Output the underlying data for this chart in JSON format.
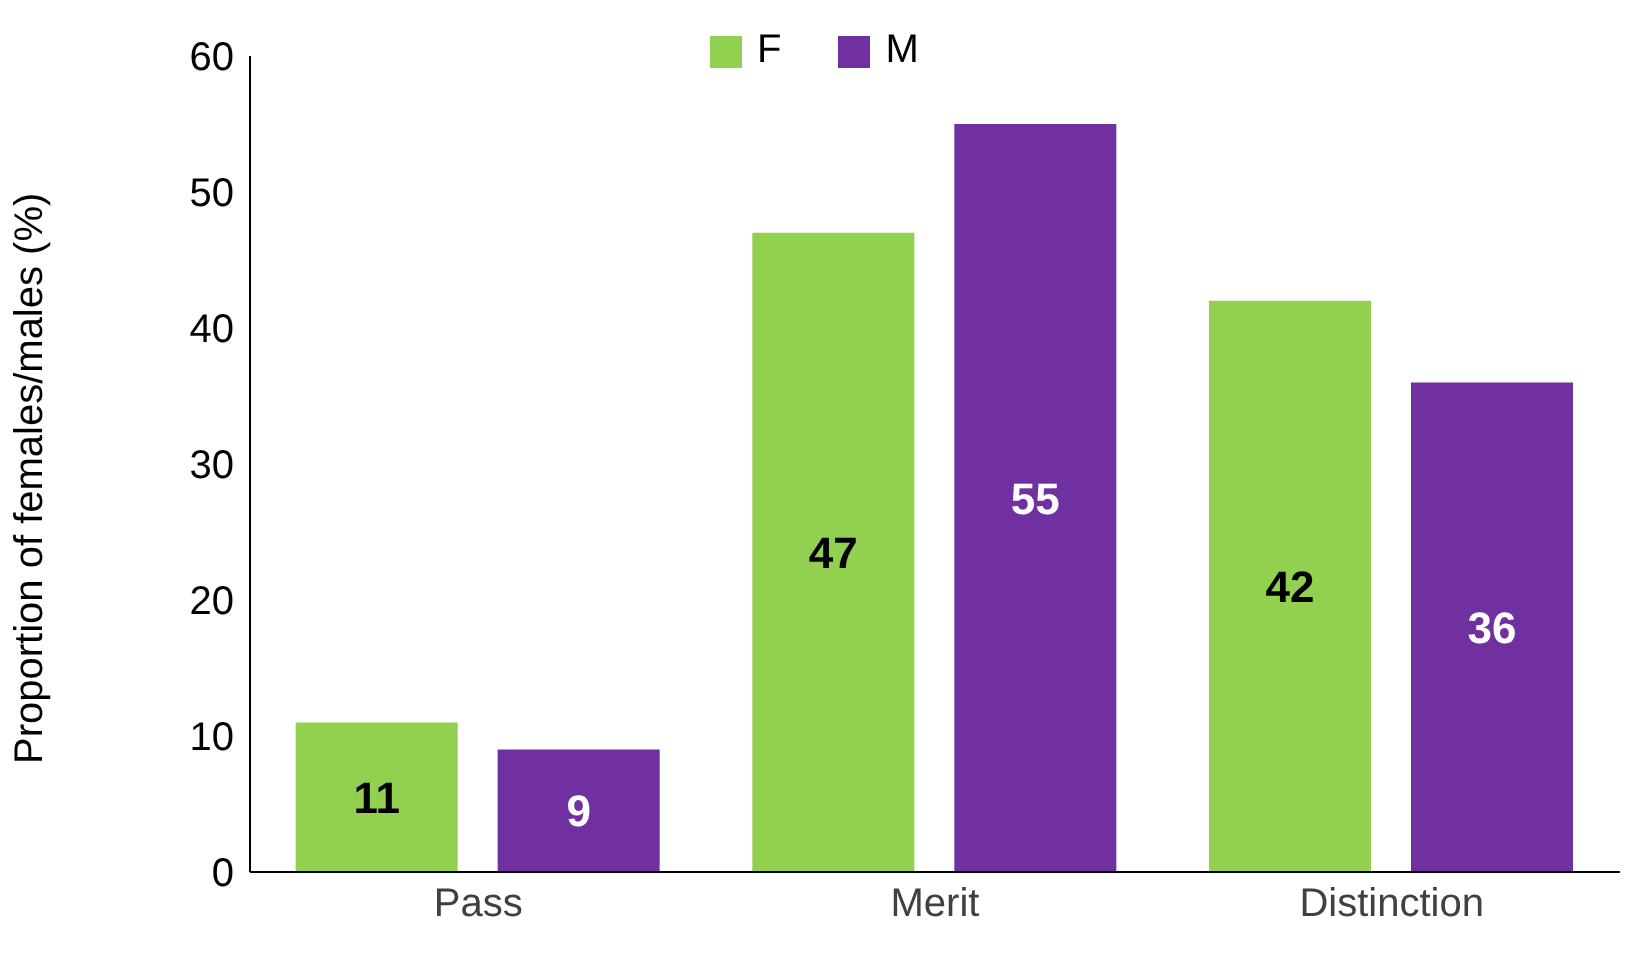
{
  "chart_data": {
    "type": "bar",
    "ylabel": "Proportion of females/males (%)",
    "categories": [
      "Pass",
      "Merit",
      "Distinction"
    ],
    "series": [
      {
        "name": "F",
        "color": "#92d050",
        "values": [
          11,
          47,
          42
        ]
      },
      {
        "name": "M",
        "color": "#7030a0",
        "values": [
          9,
          55,
          36
        ]
      }
    ],
    "ylim": [
      0,
      60
    ],
    "yticks": [
      0,
      10,
      20,
      30,
      40,
      50,
      60
    ],
    "data_labels": true,
    "legend": "top",
    "grid": false
  }
}
